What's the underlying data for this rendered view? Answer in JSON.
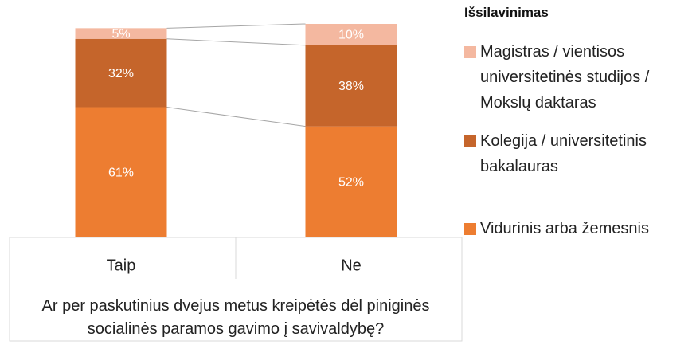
{
  "chart_data": {
    "type": "bar",
    "stacked": true,
    "categories": [
      "Taip",
      "Ne"
    ],
    "xlabel": "Ar per paskutinius dvejus metus kreipėtės dėl piniginės socialinės paramos gavimo į savivaldybę?",
    "ylim": [
      0,
      100
    ],
    "legend_title": "Išsilavinimas",
    "series": [
      {
        "name": "Vidurinis arba žemesnis",
        "color": "#ED7D31",
        "values": [
          61,
          52
        ],
        "value_labels": [
          "61%",
          "52%"
        ]
      },
      {
        "name": "Kolegija / universitetinis bakalauras",
        "color": "#C5652B",
        "values": [
          32,
          38
        ],
        "value_labels": [
          "32%",
          "38%"
        ]
      },
      {
        "name": "Magistras / vientisos universitetinės studijos / Mokslų daktaras",
        "color": "#F4B8A0",
        "values": [
          5,
          10
        ],
        "value_labels": [
          "5%",
          "10%"
        ]
      }
    ]
  }
}
